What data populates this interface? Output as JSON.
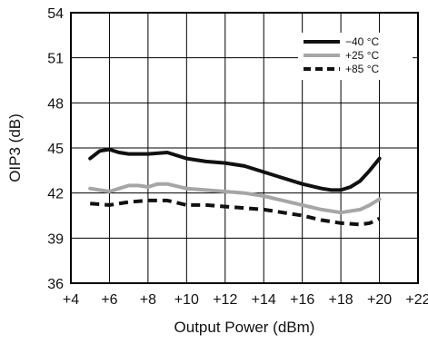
{
  "chart_data": {
    "type": "line",
    "title": "",
    "xlabel": "Output Power (dBm)",
    "ylabel": "OIP3 (dB)",
    "xlim": [
      4,
      22
    ],
    "ylim": [
      36,
      54
    ],
    "x_ticks": [
      4,
      6,
      8,
      10,
      12,
      14,
      16,
      18,
      20,
      22
    ],
    "x_tick_labels": [
      "+4",
      "+6",
      "+8",
      "+10",
      "+12",
      "+14",
      "+16",
      "+18",
      "+20",
      "+22"
    ],
    "y_ticks": [
      36,
      39,
      42,
      45,
      48,
      51,
      54
    ],
    "y_tick_labels": [
      "36",
      "39",
      "42",
      "45",
      "48",
      "51",
      "54"
    ],
    "grid": true,
    "legend_position": "top-right",
    "series": [
      {
        "name": "−40 °C",
        "color": "#111111",
        "dash": "solid",
        "x": [
          5,
          5.5,
          6,
          6.5,
          7,
          8,
          9,
          10,
          11,
          12,
          13,
          14,
          15,
          16,
          17,
          17.5,
          18,
          18.5,
          19,
          19.5,
          20
        ],
        "y": [
          44.3,
          44.8,
          44.9,
          44.7,
          44.6,
          44.6,
          44.7,
          44.3,
          44.1,
          44.0,
          43.8,
          43.4,
          43.0,
          42.6,
          42.3,
          42.2,
          42.2,
          42.4,
          42.8,
          43.5,
          44.3
        ]
      },
      {
        "name": "+25 °C",
        "color": "#a6a6a6",
        "dash": "solid",
        "x": [
          5,
          5.5,
          6,
          6.5,
          7,
          7.5,
          8,
          8.5,
          9,
          10,
          11,
          12,
          13,
          14,
          15,
          16,
          17,
          18,
          19,
          19.5,
          20
        ],
        "y": [
          42.3,
          42.2,
          42.1,
          42.3,
          42.5,
          42.5,
          42.4,
          42.6,
          42.6,
          42.3,
          42.2,
          42.1,
          42.0,
          41.8,
          41.5,
          41.2,
          40.9,
          40.7,
          40.9,
          41.2,
          41.6
        ]
      },
      {
        "name": "+85 °C",
        "color": "#111111",
        "dash": "dashed",
        "x": [
          5,
          6,
          7,
          8,
          9,
          10,
          11,
          12,
          13,
          14,
          15,
          16,
          17,
          18,
          19,
          19.5,
          20
        ],
        "y": [
          41.3,
          41.2,
          41.4,
          41.5,
          41.5,
          41.2,
          41.2,
          41.1,
          41.0,
          40.9,
          40.7,
          40.5,
          40.2,
          40.0,
          39.9,
          40.0,
          40.3
        ]
      }
    ]
  }
}
